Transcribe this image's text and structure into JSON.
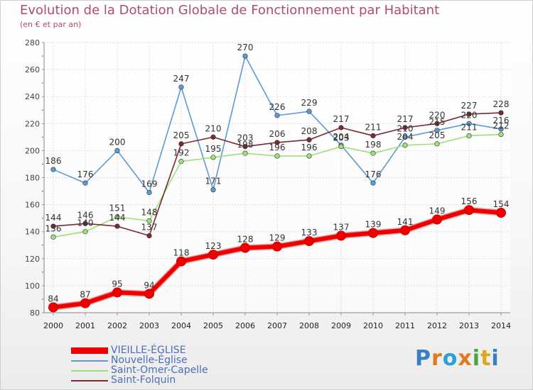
{
  "title": "Evolution de la Dotation Globale de Fonctionnement par Habitant",
  "subtitle": "(en € et par an)",
  "logo": {
    "text": "Proxiti",
    "colors": [
      "#3a7fc4",
      "#e07a1f",
      "#2aa0d8",
      "#e07a1f",
      "#4aa53c",
      "#d9a81c",
      "#3a7fc4"
    ]
  },
  "chart_data": {
    "type": "line",
    "title": "Evolution de la Dotation Globale de Fonctionnement par Habitant",
    "subtitle": "(en € et par an)",
    "x": [
      "2000",
      "2001",
      "2002",
      "2003",
      "2004",
      "2005",
      "2006",
      "2007",
      "2008",
      "2009",
      "2010",
      "2011",
      "2012",
      "2013",
      "2014"
    ],
    "ylim": [
      80,
      280
    ],
    "yticks": [
      "80",
      "100",
      "120",
      "140",
      "160",
      "180",
      "200",
      "220",
      "240",
      "260",
      "280"
    ],
    "grid": true,
    "series": [
      {
        "name": "VIEILLE-ÉGLISE",
        "color": "#ee0000",
        "emphasis": true,
        "values": [
          84,
          87,
          95,
          94,
          118,
          123,
          128,
          129,
          133,
          137,
          139,
          141,
          149,
          156,
          154
        ],
        "labels": [
          "84",
          "87",
          "95",
          "94",
          "118",
          "123",
          "128",
          "129",
          "133",
          "137",
          "139",
          "141",
          "149",
          "156",
          "154"
        ]
      },
      {
        "name": "Nouvelle-Église",
        "color": "#5e9ad0",
        "values": [
          186,
          176,
          200,
          169,
          247,
          171,
          270,
          226,
          229,
          204,
          176,
          210,
          215,
          220,
          216
        ],
        "labels": [
          "186",
          "176",
          "200",
          "169",
          "247",
          "171",
          "270",
          "226",
          "229",
          "204",
          "176",
          "210",
          "215",
          "220",
          "216"
        ]
      },
      {
        "name": "Saint-Omer-Capelle",
        "color": "#9fe07a",
        "values": [
          136,
          140,
          151,
          148,
          192,
          195,
          198,
          196,
          196,
          203,
          198,
          204,
          205,
          211,
          212
        ],
        "labels": [
          "136",
          "140",
          "151",
          "148",
          "192",
          "195",
          "198",
          "196",
          "196",
          "203",
          "198",
          "204",
          "205",
          "211",
          "212"
        ]
      },
      {
        "name": "Saint-Folquin",
        "color": "#7a2a30",
        "values": [
          144,
          146,
          144,
          137,
          205,
          210,
          203,
          206,
          208,
          217,
          211,
          217,
          220,
          227,
          228
        ],
        "labels": [
          "144",
          "146",
          "144",
          "137",
          "205",
          "210",
          "203",
          "206",
          "208",
          "217",
          "211",
          "217",
          "220",
          "227",
          "228"
        ]
      }
    ]
  }
}
